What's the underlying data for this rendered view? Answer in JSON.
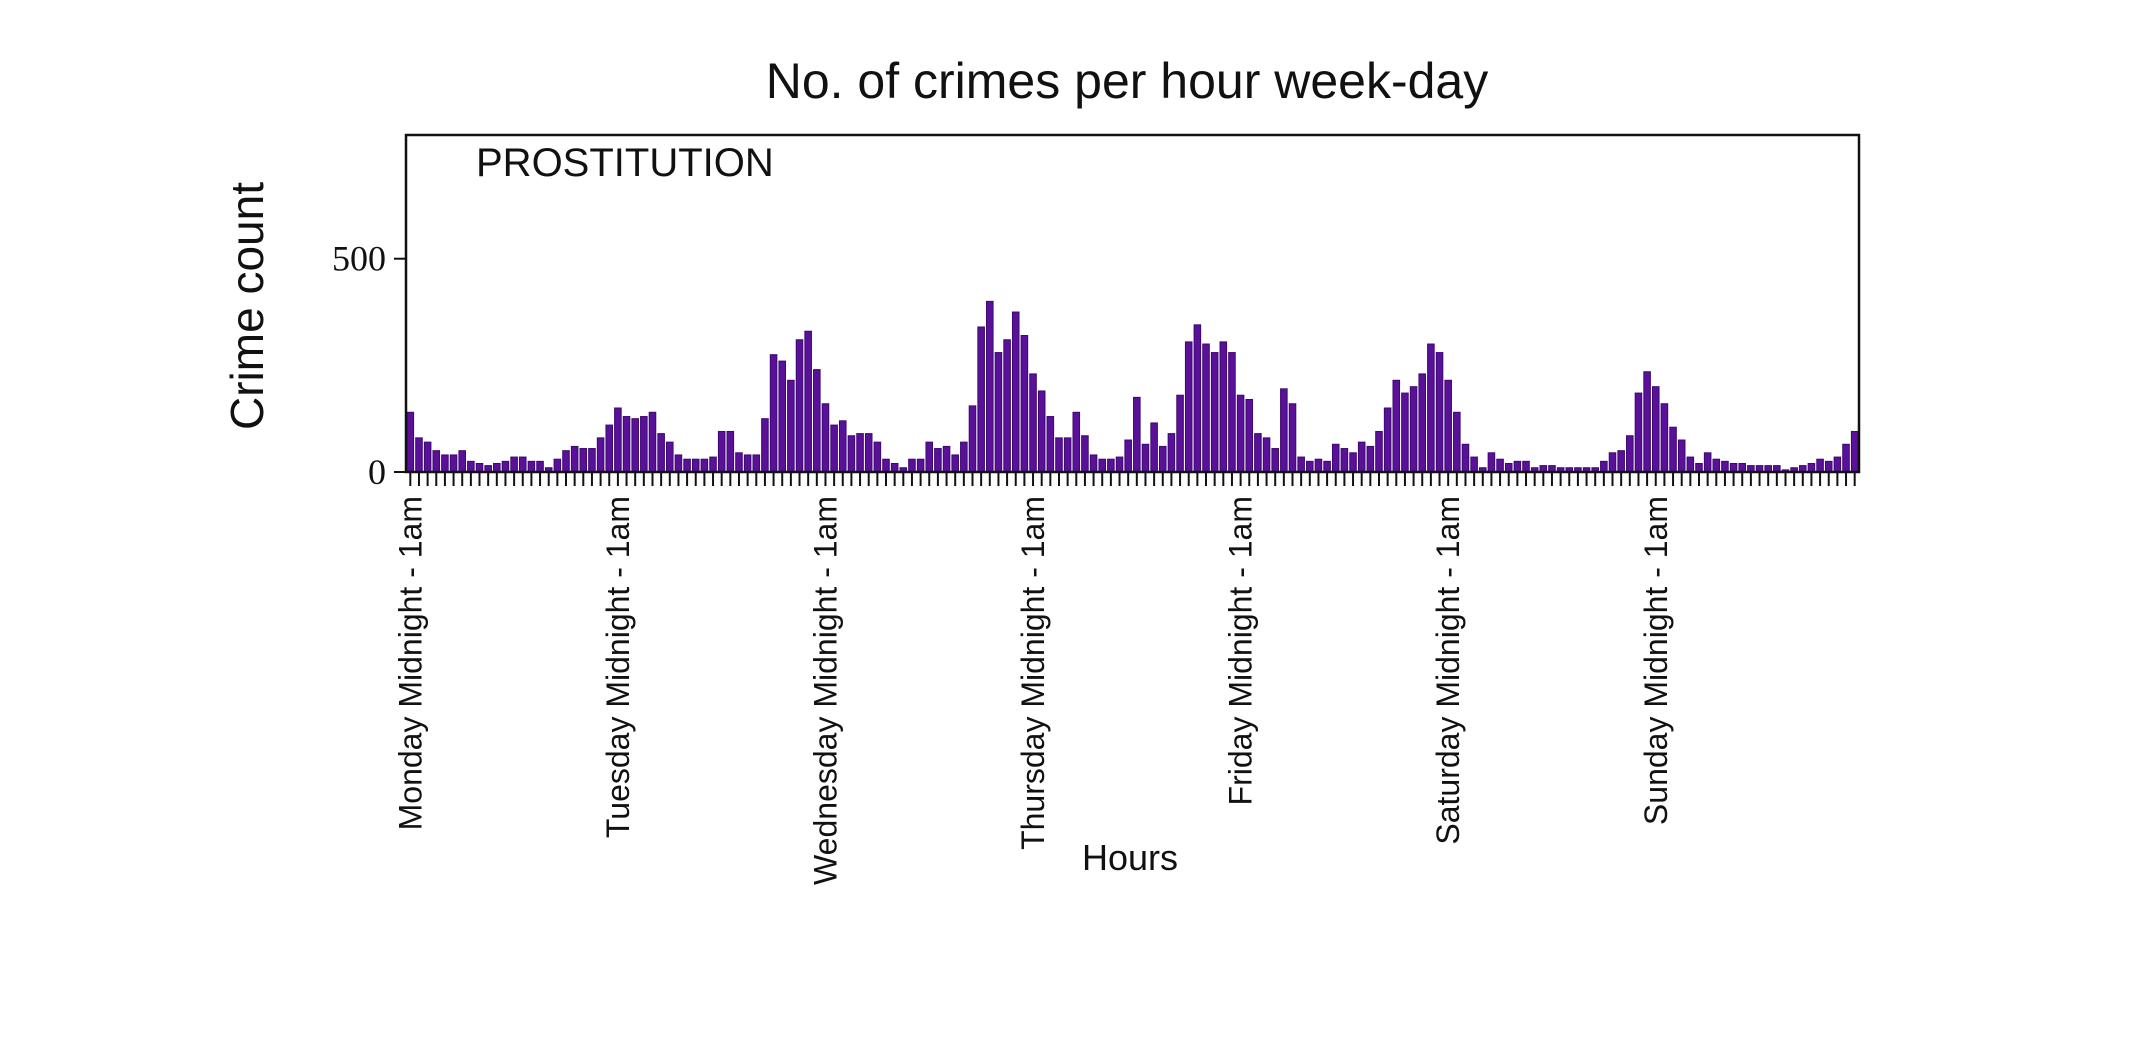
{
  "chart_data": {
    "type": "bar",
    "title": "No. of crimes per hour week-day",
    "xlabel": "Hours",
    "ylabel": "Crime count",
    "annotation": "PROSTITUTION",
    "ylim": [
      0,
      790
    ],
    "yticks": [
      0,
      500
    ],
    "grid": false,
    "bar_color": "#5a1099",
    "bar_edge_color": "#3a0a6e",
    "day_tick_labels": [
      "Monday Midnight - 1am",
      "Tuesday Midnight - 1am",
      "Wednesday Midnight - 1am",
      "Thursday Midnight - 1am",
      "Friday Midnight - 1am",
      "Saturday Midnight - 1am",
      "Sunday Midnight - 1am"
    ],
    "series": [
      {
        "values": [
          140,
          80,
          70,
          50,
          40,
          40,
          50,
          25,
          20,
          15,
          20,
          25,
          35,
          35,
          25,
          25,
          10,
          30,
          50,
          60,
          55,
          55,
          80,
          110,
          150,
          130,
          125,
          130,
          140,
          90,
          70,
          40,
          30,
          30,
          30,
          35,
          95,
          95,
          45,
          40,
          40,
          125,
          275,
          260,
          215,
          310,
          330,
          240,
          160,
          110,
          120,
          85,
          90,
          90,
          70,
          30,
          20,
          10,
          30,
          30,
          70,
          55,
          60,
          40,
          70,
          155,
          340,
          400,
          280,
          310,
          375,
          320,
          230,
          190,
          130,
          80,
          80,
          140,
          85,
          40,
          30,
          30,
          35,
          75,
          175,
          65,
          115,
          60,
          90,
          180,
          305,
          345,
          300,
          280,
          305,
          280,
          180,
          170,
          90,
          80,
          55,
          195,
          160,
          35,
          25,
          30,
          25,
          65,
          55,
          45,
          70,
          60,
          95,
          150,
          215,
          185,
          200,
          230,
          300,
          280,
          215,
          140,
          65,
          35,
          10,
          45,
          30,
          20,
          25,
          25,
          10,
          15,
          15,
          10,
          10,
          10,
          10,
          10,
          25,
          45,
          50,
          85,
          185,
          235,
          200,
          160,
          105,
          75,
          35,
          20,
          45,
          30,
          25,
          20,
          20,
          15,
          15,
          15,
          15,
          5,
          10,
          15,
          20,
          30,
          25,
          35,
          65,
          95
        ]
      }
    ]
  }
}
